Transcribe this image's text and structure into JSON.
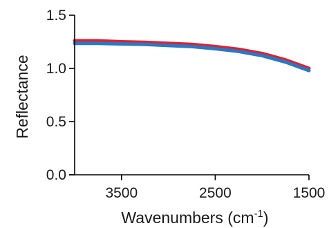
{
  "chart_data": {
    "type": "line",
    "title": "",
    "xlabel": "Wavenumbers (cm",
    "xlabel_sup": "-1",
    "xlabel_end": ")",
    "ylabel": "Reflectance",
    "xlim": [
      4000,
      1500
    ],
    "ylim": [
      0,
      1.5
    ],
    "x_reversed": true,
    "x_ticks": [
      3500,
      2500,
      1500
    ],
    "x_tick_labels": [
      "3500",
      "2500",
      "1500"
    ],
    "y_ticks": [
      0,
      0.5,
      1.0,
      1.5
    ],
    "y_tick_labels": [
      "0.0",
      "0.5",
      "1.0",
      "1.5"
    ],
    "grid": false,
    "legend": "none",
    "x": [
      4000,
      3750,
      3500,
      3250,
      3000,
      2750,
      2500,
      2250,
      2000,
      1750,
      1500
    ],
    "series": [
      {
        "color": "#e0202e",
        "values": [
          1.26,
          1.26,
          1.25,
          1.245,
          1.235,
          1.225,
          1.205,
          1.18,
          1.14,
          1.08,
          1.0
        ]
      },
      {
        "color": "#2a78c4",
        "values": [
          1.235,
          1.235,
          1.23,
          1.225,
          1.215,
          1.205,
          1.185,
          1.16,
          1.12,
          1.06,
          0.98
        ]
      }
    ]
  }
}
